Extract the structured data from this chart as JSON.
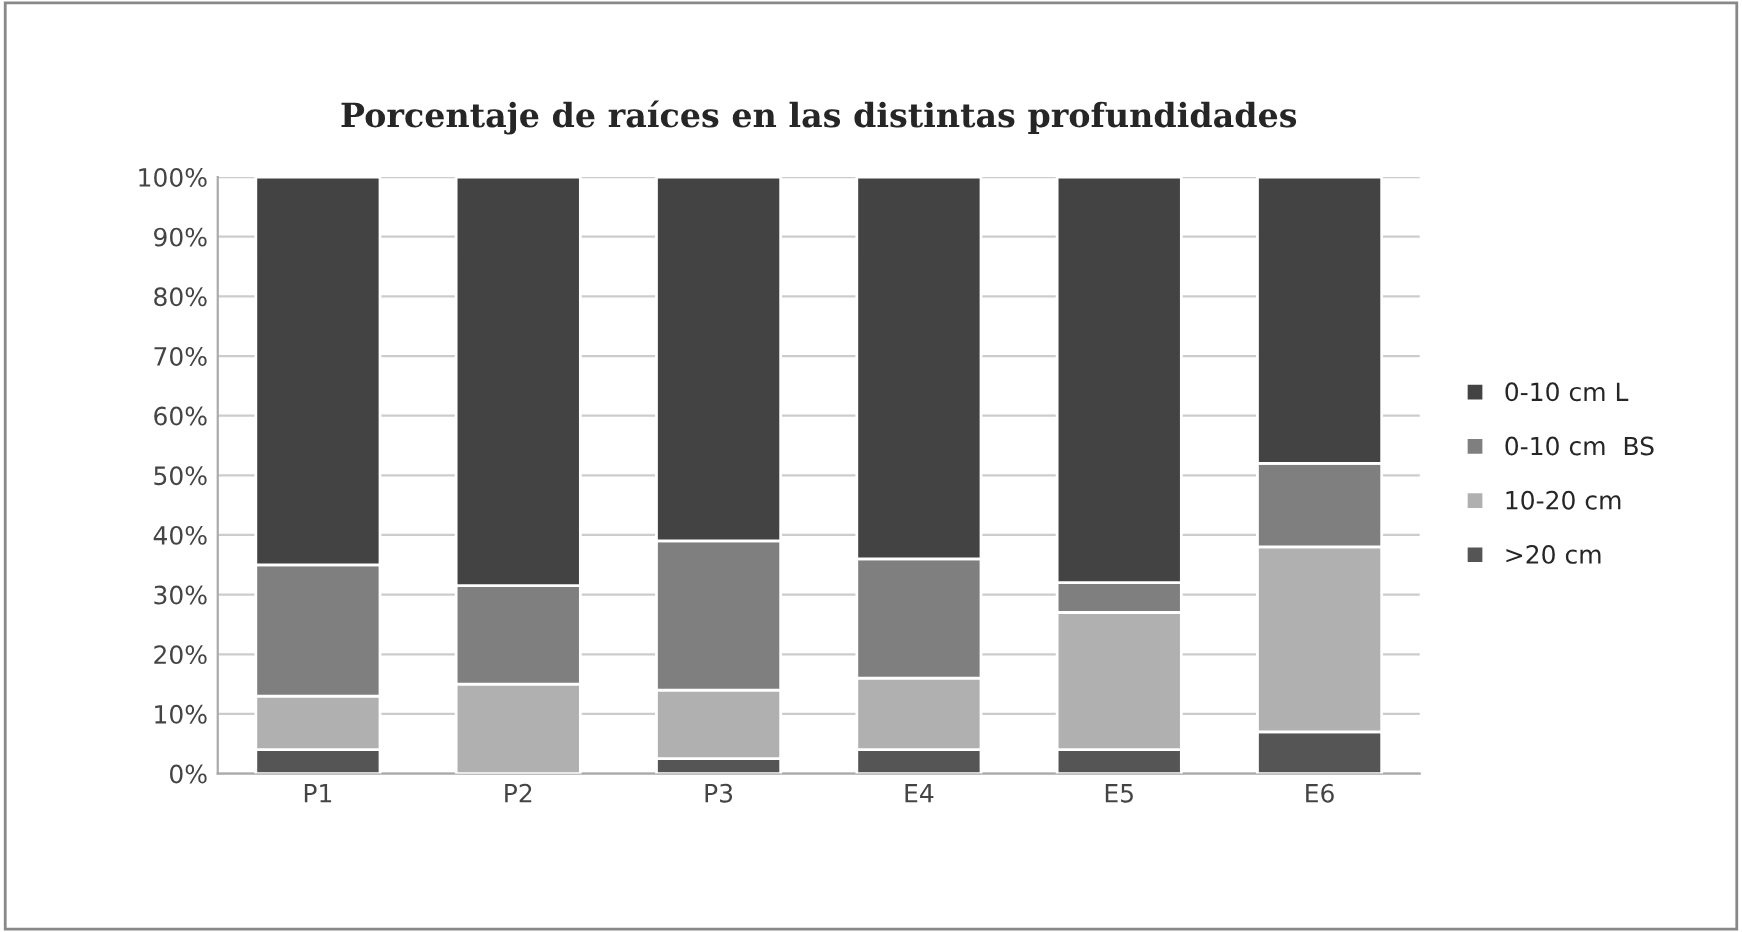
{
  "chart_data": {
    "type": "bar",
    "stacked": true,
    "title": "Porcentaje de raíces en las distintas profundidades",
    "categories": [
      "P1",
      "P2",
      "P3",
      "E4",
      "E5",
      "E6"
    ],
    "series": [
      {
        "name": ">20 cm",
        "color": "#555555",
        "values": [
          4,
          0,
          2.5,
          4,
          4,
          7
        ]
      },
      {
        "name": "10-20 cm",
        "color": "#b0b0b0",
        "values": [
          9,
          15,
          11.5,
          12,
          23,
          31
        ]
      },
      {
        "name": "0-10 cm  BS",
        "color": "#7f7f7f",
        "values": [
          22,
          16.5,
          25,
          20,
          5,
          14
        ]
      },
      {
        "name": "0-10 cm L",
        "color": "#434343",
        "values": [
          65,
          68.5,
          61,
          64,
          68,
          48
        ]
      }
    ],
    "ylim": [
      0,
      100
    ],
    "yticks": [
      {
        "value": 0,
        "label": "0%"
      },
      {
        "value": 10,
        "label": "10%"
      },
      {
        "value": 20,
        "label": "20%"
      },
      {
        "value": 30,
        "label": "30%"
      },
      {
        "value": 40,
        "label": "40%"
      },
      {
        "value": 50,
        "label": "50%"
      },
      {
        "value": 60,
        "label": "60%"
      },
      {
        "value": 70,
        "label": "70%"
      },
      {
        "value": 80,
        "label": "80%"
      },
      {
        "value": 90,
        "label": "90%"
      },
      {
        "value": 100,
        "label": "100%"
      }
    ],
    "grid": "y",
    "legend": "right"
  }
}
